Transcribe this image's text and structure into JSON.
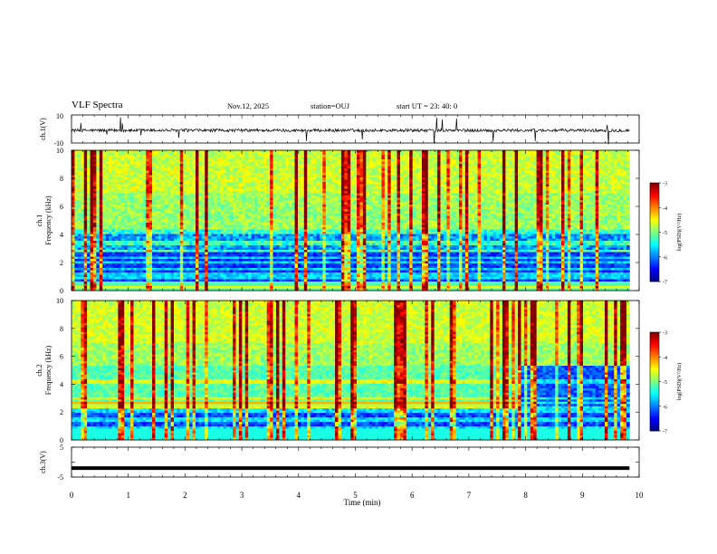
{
  "header": {
    "title": "VLF Spectra",
    "date": "Nov.12, 2025",
    "station": "station=OUJ",
    "start_ut": "start UT =  23: 40: 0"
  },
  "colors": {
    "waveform": "#000000",
    "colormap": [
      "#00007f",
      "#0000ff",
      "#007fff",
      "#00ffff",
      "#7fff7f",
      "#ffff00",
      "#ff7f00",
      "#ff0000",
      "#7f0000"
    ]
  },
  "chart_data": [
    {
      "type": "line",
      "panel": "ch1-waveform",
      "ylabel": "ch.1(V)",
      "ylim": [
        -10,
        10
      ],
      "yticks": [
        "10",
        "-10"
      ],
      "xlim": [
        0,
        10
      ],
      "description_series": "noisy waveform around 0 V with sparse spikes"
    },
    {
      "type": "heatmap",
      "panel": "ch1-spectrogram",
      "ylabel": "ch.1\nFrequency (kHz)",
      "ylabel_line1": "ch.1",
      "ylabel_line2": "Frequency (kHz)",
      "ylim": [
        0,
        10
      ],
      "yticks": [
        "0",
        "2",
        "4",
        "6",
        "8",
        "10"
      ],
      "xlim": [
        0,
        9.83
      ],
      "colorbar": {
        "range": [
          -7,
          -3
        ],
        "ticks": [
          "-3",
          "-4",
          "-5",
          "-6",
          "-7"
        ],
        "label": "log(PSD)(V²/Hz)"
      }
    },
    {
      "type": "heatmap",
      "panel": "ch2-spectrogram",
      "ylabel_line1": "ch.2",
      "ylabel_line2": "Frequency (kHz)",
      "ylim": [
        0,
        10
      ],
      "yticks": [
        "0",
        "2",
        "4",
        "6",
        "8",
        "10"
      ],
      "xlim": [
        0,
        9.83
      ],
      "band_end_min": 7.9,
      "colorbar": {
        "range": [
          -7,
          -3
        ],
        "ticks": [
          "-3",
          "-4",
          "-5",
          "-6",
          "-7"
        ],
        "label": "log(PSD)(V²/Hz)"
      }
    },
    {
      "type": "line",
      "panel": "ch3-waveform",
      "ylabel": "ch.3(V)",
      "ylim": [
        -5,
        5
      ],
      "yticks": [
        "5",
        "0",
        "-5"
      ],
      "constant_value": -2,
      "xlim": [
        0,
        9.83
      ]
    }
  ],
  "xaxis": {
    "label": "Time (min)",
    "ticks": [
      "0",
      "1",
      "2",
      "3",
      "4",
      "5",
      "6",
      "7",
      "8",
      "9",
      "10"
    ],
    "range": [
      0,
      10
    ]
  }
}
